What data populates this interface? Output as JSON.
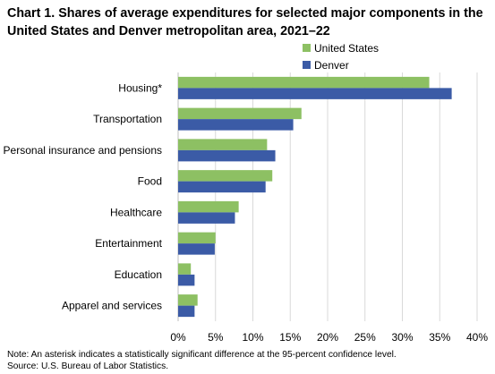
{
  "title": "Chart 1. Shares of average expenditures for selected major components in the United States and Denver metropolitan area, 2021–22",
  "colors": {
    "united_states": "#8dc063",
    "denver": "#3b5ba6",
    "grid": "#d9d9d9",
    "axis": "#bfbfbf"
  },
  "legend": [
    {
      "label": "United States",
      "color": "#8dc063"
    },
    {
      "label": "Denver",
      "color": "#3b5ba6"
    }
  ],
  "notes": {
    "note": "Note: An asterisk indicates a statistically significant difference at the 95-percent confidence level.",
    "source": "Source: U.S. Bureau of Labor Statistics."
  },
  "chart_data": {
    "type": "bar",
    "orientation": "horizontal",
    "categories": [
      "Housing*",
      "Transportation",
      "Personal insurance and pensions",
      "Food",
      "Healthcare",
      "Entertainment",
      "Education",
      "Apparel and services"
    ],
    "series": [
      {
        "name": "United States",
        "values": [
          33.6,
          16.5,
          11.9,
          12.6,
          8.1,
          5.0,
          1.7,
          2.6
        ]
      },
      {
        "name": "Denver",
        "values": [
          36.6,
          15.4,
          13.0,
          11.7,
          7.6,
          4.9,
          2.2,
          2.2
        ]
      }
    ],
    "xlim": [
      0,
      40
    ],
    "xticks": [
      0,
      5,
      10,
      15,
      20,
      25,
      30,
      35,
      40
    ],
    "tick_format": "percent",
    "grid": true,
    "legend_position": "top-right"
  }
}
